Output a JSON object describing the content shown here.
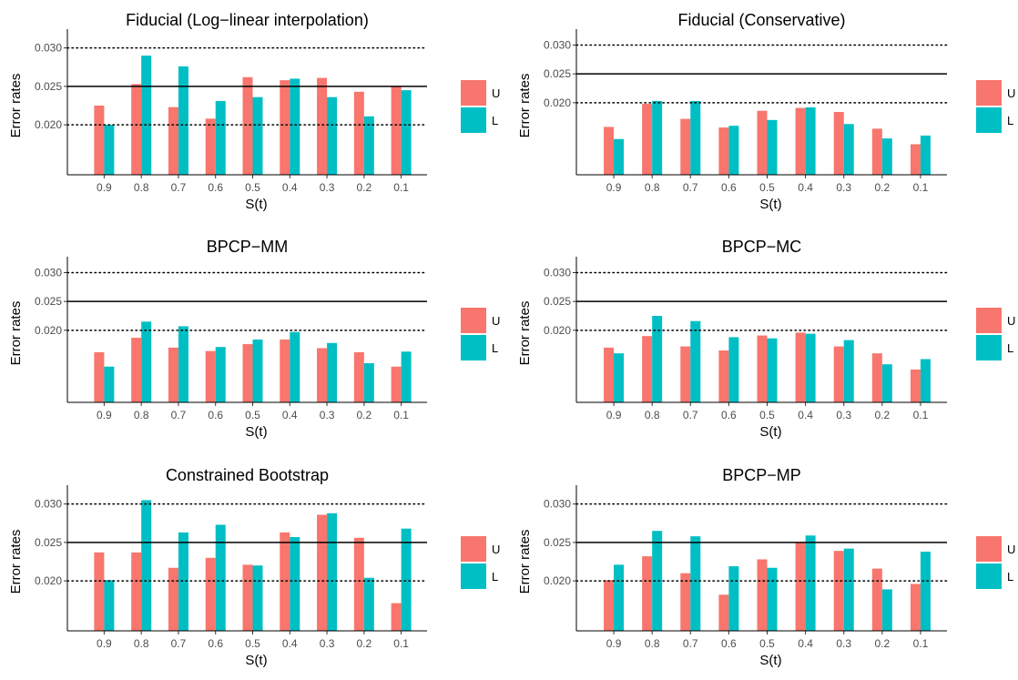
{
  "legend": {
    "colors": {
      "U": "#F8766D",
      "L": "#00BFC4"
    },
    "entries": [
      "U",
      "L"
    ]
  },
  "reference_lines": [
    {
      "y": 0.025,
      "style": "solid"
    },
    {
      "y": 0.03,
      "style": "dotted"
    },
    {
      "y": 0.02,
      "style": "dotted"
    }
  ],
  "chart_data": [
    {
      "type": "bar",
      "title": "Fiducial (Log−linear interpolation)",
      "xlabel": "S(t)",
      "ylabel": "Error rates",
      "categories": [
        "0.9",
        "0.8",
        "0.7",
        "0.6",
        "0.5",
        "0.4",
        "0.3",
        "0.2",
        "0.1"
      ],
      "yticks": [
        "0.020",
        "0.025",
        "0.030"
      ],
      "ylim": [
        0.0135,
        0.0315
      ],
      "series": [
        {
          "name": "U",
          "values": [
            0.0225,
            0.0253,
            0.0223,
            0.0208,
            0.0262,
            0.0258,
            0.0261,
            0.0243,
            0.025
          ]
        },
        {
          "name": "L",
          "values": [
            0.02,
            0.029,
            0.0276,
            0.0231,
            0.0236,
            0.026,
            0.0236,
            0.0211,
            0.0245
          ]
        }
      ]
    },
    {
      "type": "bar",
      "title": "Fiducial (Conservative)",
      "xlabel": "S(t)",
      "ylabel": "Error rates",
      "categories": [
        "0.9",
        "0.8",
        "0.7",
        "0.6",
        "0.5",
        "0.4",
        "0.3",
        "0.2",
        "0.1"
      ],
      "yticks": [
        "0.020",
        "0.025",
        "0.030"
      ],
      "ylim": [
        0.0075,
        0.0315
      ],
      "series": [
        {
          "name": "U",
          "values": [
            0.0158,
            0.0198,
            0.0172,
            0.0157,
            0.0186,
            0.0191,
            0.0184,
            0.0155,
            0.0128
          ]
        },
        {
          "name": "L",
          "values": [
            0.0137,
            0.0203,
            0.0203,
            0.016,
            0.017,
            0.0192,
            0.0163,
            0.0138,
            0.0143
          ]
        }
      ]
    },
    {
      "type": "bar",
      "title": "BPCP−MM",
      "xlabel": "S(t)",
      "ylabel": "Error rates",
      "categories": [
        "0.9",
        "0.8",
        "0.7",
        "0.6",
        "0.5",
        "0.4",
        "0.3",
        "0.2",
        "0.1"
      ],
      "yticks": [
        "0.020",
        "0.025",
        "0.030"
      ],
      "ylim": [
        0.0075,
        0.0315
      ],
      "series": [
        {
          "name": "U",
          "values": [
            0.0162,
            0.0187,
            0.017,
            0.0164,
            0.0176,
            0.0184,
            0.0169,
            0.0162,
            0.0137
          ]
        },
        {
          "name": "L",
          "values": [
            0.0137,
            0.0215,
            0.0207,
            0.0171,
            0.0184,
            0.0197,
            0.0178,
            0.0143,
            0.0163
          ]
        }
      ]
    },
    {
      "type": "bar",
      "title": "BPCP−MC",
      "xlabel": "S(t)",
      "ylabel": "Error rates",
      "categories": [
        "0.9",
        "0.8",
        "0.7",
        "0.6",
        "0.5",
        "0.4",
        "0.3",
        "0.2",
        "0.1"
      ],
      "yticks": [
        "0.020",
        "0.025",
        "0.030"
      ],
      "ylim": [
        0.0075,
        0.0315
      ],
      "series": [
        {
          "name": "U",
          "values": [
            0.017,
            0.019,
            0.0172,
            0.0165,
            0.0191,
            0.0196,
            0.0172,
            0.016,
            0.0132
          ]
        },
        {
          "name": "L",
          "values": [
            0.016,
            0.0225,
            0.0216,
            0.0188,
            0.0186,
            0.0194,
            0.0183,
            0.0141,
            0.015
          ]
        }
      ]
    },
    {
      "type": "bar",
      "title": "Constrained Bootstrap",
      "xlabel": "S(t)",
      "ylabel": "Error rates",
      "categories": [
        "0.9",
        "0.8",
        "0.7",
        "0.6",
        "0.5",
        "0.4",
        "0.3",
        "0.2",
        "0.1"
      ],
      "yticks": [
        "0.020",
        "0.025",
        "0.030"
      ],
      "ylim": [
        0.0135,
        0.0315
      ],
      "series": [
        {
          "name": "U",
          "values": [
            0.0237,
            0.0237,
            0.0217,
            0.023,
            0.0221,
            0.0263,
            0.0286,
            0.0256,
            0.0171
          ]
        },
        {
          "name": "L",
          "values": [
            0.0201,
            0.0305,
            0.0263,
            0.0273,
            0.022,
            0.0257,
            0.0288,
            0.0204,
            0.0268
          ]
        }
      ]
    },
    {
      "type": "bar",
      "title": "BPCP−MP",
      "xlabel": "S(t)",
      "ylabel": "Error rates",
      "categories": [
        "0.9",
        "0.8",
        "0.7",
        "0.6",
        "0.5",
        "0.4",
        "0.3",
        "0.2",
        "0.1"
      ],
      "yticks": [
        "0.020",
        "0.025",
        "0.030"
      ],
      "ylim": [
        0.0135,
        0.0315
      ],
      "series": [
        {
          "name": "U",
          "values": [
            0.0201,
            0.0232,
            0.021,
            0.0182,
            0.0228,
            0.025,
            0.0239,
            0.0216,
            0.0196
          ]
        },
        {
          "name": "L",
          "values": [
            0.0221,
            0.0265,
            0.0258,
            0.0219,
            0.0217,
            0.0259,
            0.0242,
            0.0189,
            0.0238
          ]
        }
      ]
    }
  ]
}
